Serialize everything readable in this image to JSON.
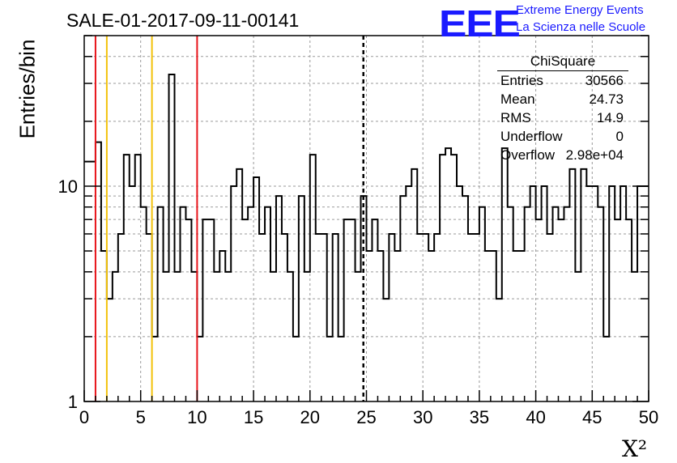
{
  "header": {
    "title": "SALE-01-2017-09-11-00141",
    "logo_text": "EEE",
    "logo_line1": "Extreme Energy Events",
    "logo_line2": "La Scienza nelle Scuole"
  },
  "stats_box": {
    "title": "ChiSquare",
    "rows": [
      {
        "key": "Entries",
        "value": "30566"
      },
      {
        "key": "Mean",
        "value": "24.73"
      },
      {
        "key": "RMS",
        "value": "14.9"
      },
      {
        "key": "Underflow",
        "value": "0"
      },
      {
        "key": "Overflow",
        "value": "2.98e+04"
      }
    ]
  },
  "chart_data": {
    "type": "histogram",
    "title": "SALE-01-2017-09-11-00141",
    "xlabel": "X²",
    "ylabel": "Entries/bin",
    "x_range": [
      0,
      50
    ],
    "y_scale": "log",
    "y_range": [
      1,
      50
    ],
    "grid": true,
    "bin_width": 0.5,
    "x_ticks": [
      "0",
      "5",
      "10",
      "15",
      "20",
      "25",
      "30",
      "35",
      "40",
      "45",
      "50"
    ],
    "y_ticks": [
      "1",
      "10"
    ],
    "counts": [
      13,
      13,
      16,
      5,
      3,
      4,
      6,
      14,
      10,
      14,
      8,
      6,
      2,
      8,
      4,
      33,
      4,
      8,
      7,
      4,
      2,
      7,
      7,
      4,
      5,
      4,
      10,
      12,
      7,
      8,
      11,
      6,
      8,
      4,
      9,
      6,
      4,
      2,
      9,
      4,
      14,
      6,
      6,
      2,
      6,
      2,
      7,
      7,
      4,
      9,
      5,
      7,
      5,
      3,
      6,
      5,
      9,
      10,
      12,
      6,
      6,
      5,
      6,
      14,
      15,
      14,
      10,
      9,
      6,
      6,
      8,
      5,
      5,
      3,
      15,
      8,
      5,
      5,
      8,
      10,
      7,
      10,
      6,
      8,
      7,
      8,
      12,
      4,
      12,
      10,
      10,
      8,
      2,
      10,
      7,
      10,
      7,
      4,
      10,
      10
    ],
    "vertical_lines": [
      {
        "x": 1,
        "color": "#e8141a",
        "style": "solid"
      },
      {
        "x": 2,
        "color": "#f2c20a",
        "style": "solid"
      },
      {
        "x": 6,
        "color": "#f2c20a",
        "style": "solid"
      },
      {
        "x": 10,
        "color": "#e8141a",
        "style": "solid"
      },
      {
        "x": 24.73,
        "color": "#000000",
        "style": "dashed"
      }
    ]
  }
}
